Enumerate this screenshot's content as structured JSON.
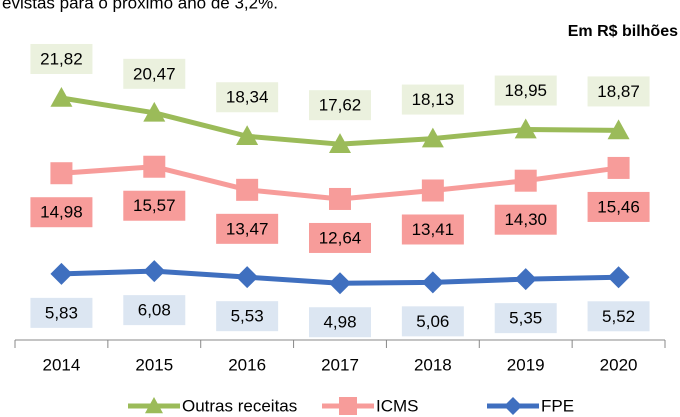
{
  "chart_data": {
    "type": "line",
    "subtitle": "evistas para o próximo ano de 3,2%.",
    "unit_label": "Em R$ bilhões",
    "categories": [
      "2014",
      "2015",
      "2016",
      "2017",
      "2018",
      "2019",
      "2020"
    ],
    "ylim": [
      0,
      28
    ],
    "legend": "bottom",
    "series": [
      {
        "name": "Outras receitas",
        "color": "#9bbb59",
        "marker": "triangle",
        "label_fill": "#ebf1de",
        "label_position": "above",
        "values": [
          21.82,
          20.47,
          18.34,
          17.62,
          18.13,
          18.95,
          18.87
        ],
        "value_labels": [
          "21,82",
          "20,47",
          "18,34",
          "17,62",
          "18,13",
          "18,95",
          "18,87"
        ]
      },
      {
        "name": "ICMS",
        "color": "#f79c9a",
        "marker": "square",
        "label_fill": "#f79c9a",
        "label_position": "below",
        "values": [
          14.98,
          15.57,
          13.47,
          12.64,
          13.41,
          14.3,
          15.46
        ],
        "value_labels": [
          "14,98",
          "15,57",
          "13,47",
          "12,64",
          "13,41",
          "14,30",
          "15,46"
        ]
      },
      {
        "name": "FPE",
        "color": "#3f6fbf",
        "marker": "diamond",
        "label_fill": "#dce6f2",
        "label_position": "below",
        "values": [
          5.83,
          6.08,
          5.53,
          4.98,
          5.06,
          5.35,
          5.52
        ],
        "value_labels": [
          "5,83",
          "6,08",
          "5,53",
          "4,98",
          "5,06",
          "5,35",
          "5,52"
        ]
      }
    ]
  }
}
